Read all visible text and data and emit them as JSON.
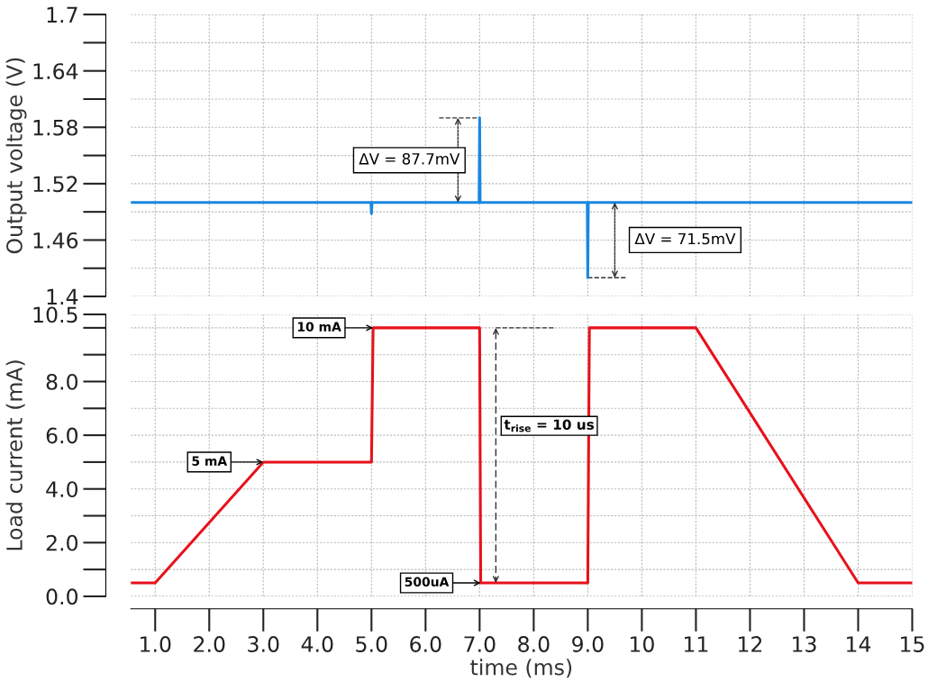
{
  "chart_data": [
    {
      "type": "line",
      "ylabel": "Output voltage (V)",
      "color": "#1a87e0",
      "x": [
        0.55,
        4.99,
        5.0,
        5.01,
        6.99,
        7.0,
        7.01,
        8.99,
        9.0,
        9.01,
        15
      ],
      "values": [
        1.5,
        1.5,
        1.488,
        1.5,
        1.5,
        1.59,
        1.5,
        1.5,
        1.42,
        1.5,
        1.5
      ],
      "xlim": [
        0.55,
        15
      ],
      "xticks": [
        {
          "value": 1,
          "label": null
        },
        {
          "value": 2,
          "label": null
        },
        {
          "value": 3,
          "label": null
        },
        {
          "value": 4,
          "label": null
        },
        {
          "value": 5,
          "label": null
        },
        {
          "value": 6,
          "label": null
        },
        {
          "value": 7,
          "label": null
        },
        {
          "value": 8,
          "label": null
        },
        {
          "value": 9,
          "label": null
        },
        {
          "value": 10,
          "label": null
        },
        {
          "value": 11,
          "label": null
        },
        {
          "value": 12,
          "label": null
        },
        {
          "value": 13,
          "label": null
        },
        {
          "value": 14,
          "label": null
        },
        {
          "value": 15,
          "label": null
        }
      ],
      "ylim": [
        1.4,
        1.7
      ],
      "yticks": [
        1.4,
        {
          "value": 1.43,
          "label": null
        },
        1.46,
        {
          "value": 1.49,
          "label": null
        },
        1.52,
        {
          "value": 1.55,
          "label": null
        },
        1.58,
        {
          "value": 1.61,
          "label": null
        },
        1.64,
        {
          "value": 1.67,
          "label": null
        },
        1.7
      ],
      "tick_labels": "y",
      "grid": true,
      "annotations": [
        "ΔV = 87.7mV",
        "ΔV = 71.5mV"
      ]
    },
    {
      "type": "line",
      "ylabel": "Load current (mA)",
      "xlabel": "time (ms)",
      "color": "#e8111a",
      "x": [
        0.55,
        1.0,
        3.0,
        5.0,
        5.03,
        7.0,
        7.02,
        9.0,
        9.03,
        11.0,
        14.0,
        15.0
      ],
      "values": [
        0.5,
        0.5,
        5,
        5,
        10,
        10,
        0.5,
        0.5,
        10,
        10,
        0.5,
        0.5
      ],
      "xlim": [
        0.55,
        15
      ],
      "xticks": [
        {
          "value": 1,
          "label": "1.0"
        },
        {
          "value": 2,
          "label": "2.0"
        },
        {
          "value": 3,
          "label": "3.0"
        },
        {
          "value": 4,
          "label": "4.0"
        },
        {
          "value": 5,
          "label": "5.0"
        },
        {
          "value": 6,
          "label": "6.0"
        },
        {
          "value": 7,
          "label": "7.0"
        },
        {
          "value": 8,
          "label": "8.0"
        },
        {
          "value": 9,
          "label": "9.0"
        },
        10,
        11,
        12,
        13,
        14,
        15
      ],
      "ylim": [
        0,
        10.5
      ],
      "yticks": [
        {
          "value": 0,
          "label": "0.0"
        },
        {
          "value": 1,
          "label": null
        },
        {
          "value": 2,
          "label": "2.0"
        },
        {
          "value": 3,
          "label": null
        },
        {
          "value": 4,
          "label": "4.0"
        },
        {
          "value": 5,
          "label": null
        },
        {
          "value": 6,
          "label": "6.0"
        },
        {
          "value": 7,
          "label": null
        },
        {
          "value": 8,
          "label": "8.0"
        },
        {
          "value": 9,
          "label": null
        },
        {
          "value": 10,
          "label": null
        },
        10.5
      ],
      "grid": true,
      "annotations": [
        {
          "text": "10 mA",
          "x": 5.03,
          "y": 10
        },
        {
          "text": "5 mA",
          "x": 3,
          "y": 5
        },
        {
          "text": "500uA",
          "x": 7.02,
          "y": 0.5
        },
        "t$_{rise}$ = 10 us"
      ]
    }
  ]
}
